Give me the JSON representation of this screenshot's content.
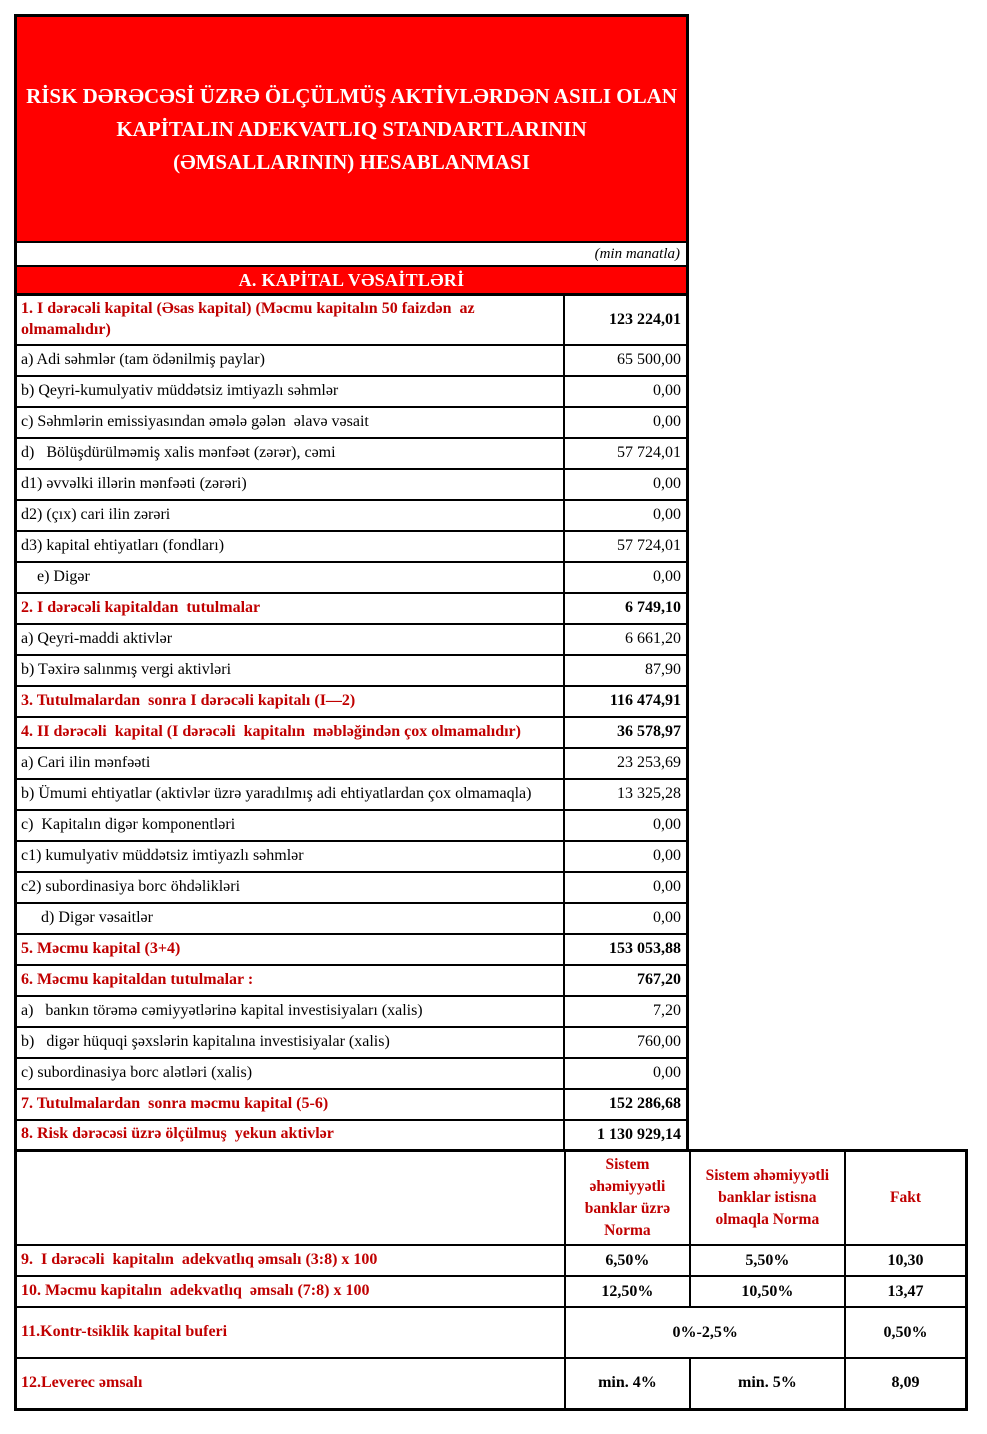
{
  "title": {
    "lines": [
      "RİSK DƏRƏCƏSİ ÜZRƏ ÖLÇÜLMÜŞ AKTİVLƏRDƏN ASILI OLAN",
      "KAPİTALIN ADEKVATLIQ STANDARTLARININ",
      "(ƏMSALLARININ) HESABLANMASI"
    ]
  },
  "unit_note": "(min manatla)",
  "section_header": "A. KAPİTAL VƏSAİTLƏRİ",
  "colors": {
    "banner_red": "#ff0000",
    "label_red": "#c00000",
    "border": "#000000"
  },
  "capital_table": {
    "rows": [
      {
        "label": "1. I dərəcəli kapital (Əsas kapital) (Məcmu kapitalın 50 faizdən  az olmamalıdır)",
        "value": "123 224,01",
        "kind": "section"
      },
      {
        "label": "a) Adi səhmlər (tam ödənilmiş paylar)",
        "value": "65 500,00",
        "kind": "item"
      },
      {
        "label": "b) Qeyri-kumulyativ müddətsiz imtiyazlı səhmlər",
        "value": "0,00",
        "kind": "item"
      },
      {
        "label": "c) Səhmlərin emissiyasından əmələ gələn  əlavə vəsait",
        "value": "0,00",
        "kind": "item"
      },
      {
        "label": "d)   Bölüşdürülməmiş xalis mənfəət (zərər), cəmi",
        "value": "57 724,01",
        "kind": "item"
      },
      {
        "label": "d1) əvvəlki illərin mənfəəti (zərəri)",
        "value": "0,00",
        "kind": "item"
      },
      {
        "label": "d2) (çıx) cari ilin zərəri",
        "value": "0,00",
        "kind": "item"
      },
      {
        "label": "d3) kapital ehtiyatları (fondları)",
        "value": "57 724,01",
        "kind": "item"
      },
      {
        "label": "    e) Digər",
        "value": "0,00",
        "kind": "item"
      },
      {
        "label": "2. I dərəcəli kapitaldan  tutulmalar",
        "value": "6 749,10",
        "kind": "section"
      },
      {
        "label": "a) Qeyri-maddi aktivlər",
        "value": "6 661,20",
        "kind": "item"
      },
      {
        "label": "b) Təxirə salınmış vergi aktivləri",
        "value": "87,90",
        "kind": "item"
      },
      {
        "label": "3. Tutulmalardan  sonra I dərəcəli kapitalı (I—2)",
        "value": "116 474,91",
        "kind": "section"
      },
      {
        "label": "4. II dərəcəli  kapital (I dərəcəli  kapitalın  məbləğindən çox olmamalıdır)",
        "value": "36 578,97",
        "kind": "section"
      },
      {
        "label": "a) Cari ilin mənfəəti",
        "value": "23 253,69",
        "kind": "item"
      },
      {
        "label": "b) Ümumi ehtiyatlar (aktivlər üzrə yaradılmış adi ehtiyatlardan çox olmamaqla)",
        "value": "13 325,28",
        "kind": "item"
      },
      {
        "label": "c)  Kapitalın digər komponentləri",
        "value": "0,00",
        "kind": "item"
      },
      {
        "label": "c1) kumulyativ müddətsiz imtiyazlı səhmlər",
        "value": "0,00",
        "kind": "item"
      },
      {
        "label": "c2) subordinasiya borc öhdəlikləri",
        "value": "0,00",
        "kind": "item"
      },
      {
        "label": "     d) Digər vəsaitlər",
        "value": "0,00",
        "kind": "item"
      },
      {
        "label": "5. Məcmu kapital (3+4)",
        "value": "153 053,88",
        "kind": "section"
      },
      {
        "label": "6. Məcmu kapitaldan tutulmalar :",
        "value": "767,20",
        "kind": "section"
      },
      {
        "label": "a)   bankın törəmə cəmiyyətlərinə kapital investisiyaları (xalis)",
        "value": "7,20",
        "kind": "item"
      },
      {
        "label": "b)   digər hüquqi şəxslərin kapitalına investisiyalar (xalis)",
        "value": "760,00",
        "kind": "item"
      },
      {
        "label": "c) subordinasiya borc alətləri (xalis)",
        "value": "0,00",
        "kind": "item"
      },
      {
        "label": "7. Tutulmalardan  sonra məcmu kapital (5-6)",
        "value": "152 286,68",
        "kind": "section"
      },
      {
        "label": "8. Risk dərəcəsi üzrə ölçülmuş  yekun aktivlər",
        "value": "1 130 929,14",
        "kind": "section"
      }
    ]
  },
  "ratio_table": {
    "headers": {
      "norm_sys": "Sistem əhəmiyyətli banklar üzrə Norma",
      "norm_ex": "Sistem əhəmiyyətli banklar istisna olmaqla Norma",
      "fakt": "Fakt"
    },
    "rows": [
      {
        "label": "9.  I dərəcəli  kapitalın  adekvatlıq əmsalı (3:8) x 100",
        "norm_sys": "6,50%",
        "norm_ex": "5,50%",
        "fakt": "10,30",
        "merged": false,
        "tall": false
      },
      {
        "label": "10. Məcmu kapitalın  adekvatlıq  əmsalı (7:8) x 100",
        "norm_sys": "12,50%",
        "norm_ex": "10,50%",
        "fakt": "13,47",
        "merged": false,
        "tall": false
      },
      {
        "label": "11.Kontr-tsiklik kapital buferi",
        "norm_merged": "0%-2,5%",
        "fakt": "0,50%",
        "merged": true,
        "tall": true
      },
      {
        "label": "12.Leverec əmsalı",
        "norm_sys": "min. 4%",
        "norm_ex": "min. 5%",
        "fakt": "8,09",
        "merged": false,
        "tall": true
      }
    ]
  }
}
